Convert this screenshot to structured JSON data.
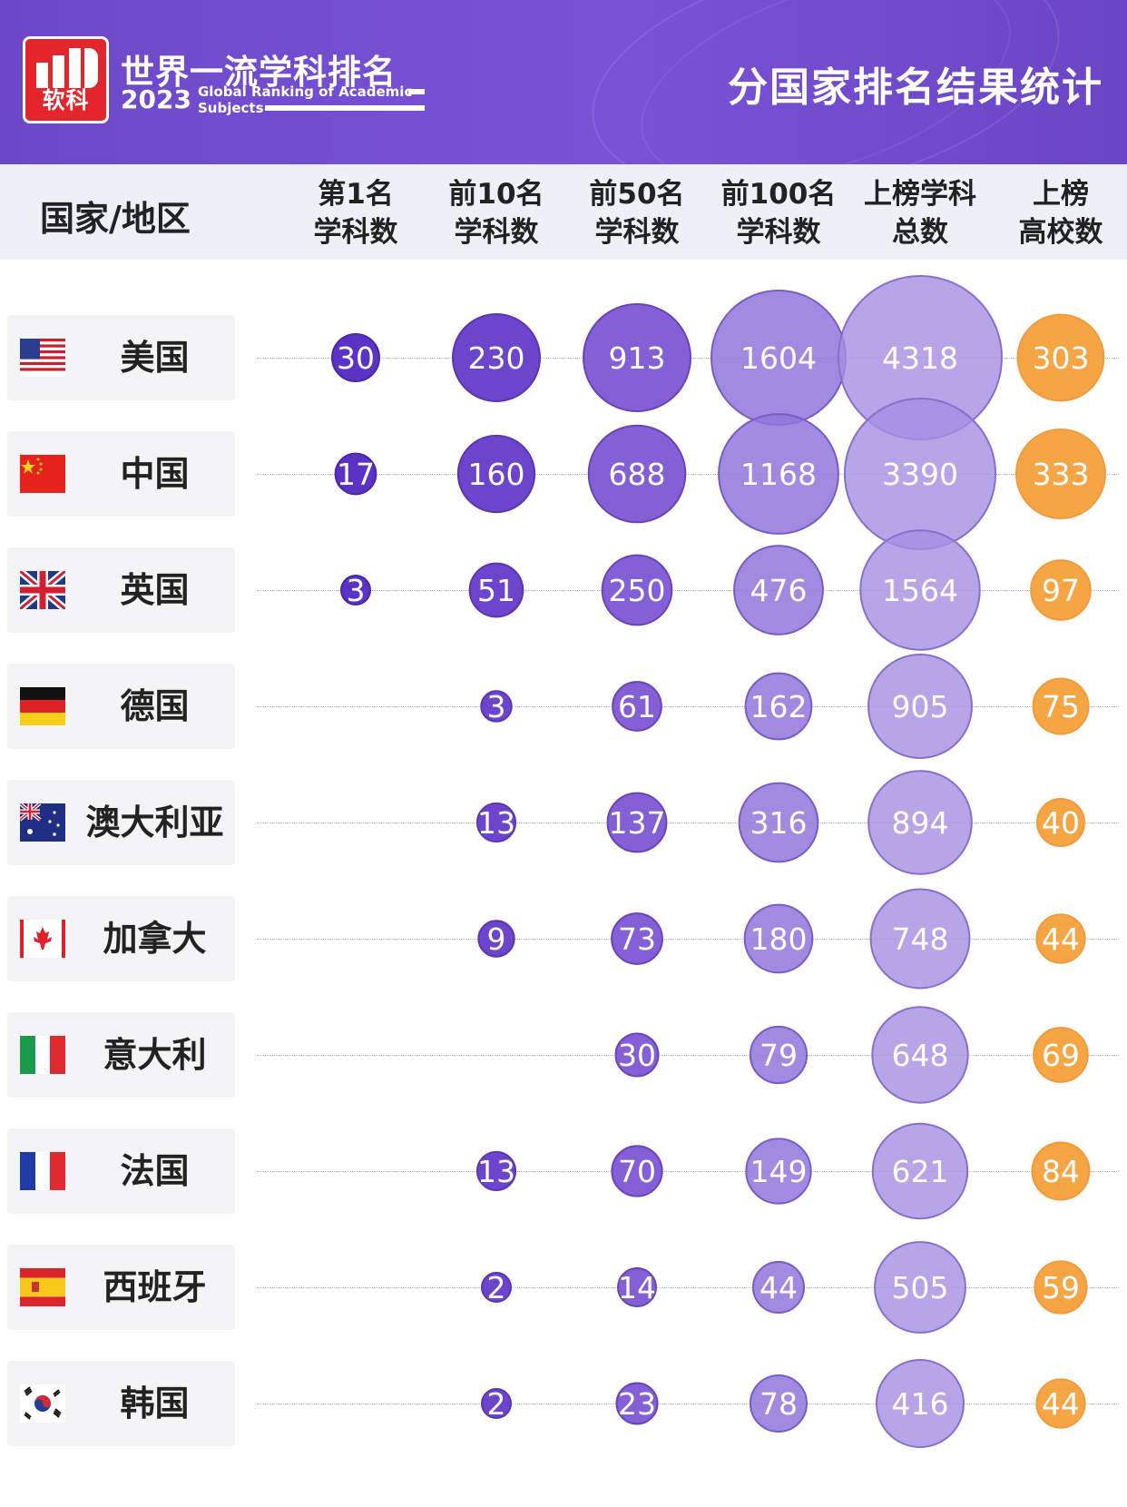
{
  "brand": {
    "logo_text": "软科",
    "title_cn": "世界一流学科排名",
    "year": "2023",
    "title_en_line1": "Global Ranking of Academic",
    "title_en_line2": "Subjects"
  },
  "header": {
    "right_title": "分国家排名结果统计"
  },
  "colors": {
    "header_bg": "#6c48c8",
    "bubble_purple_dark": "#5b33c4",
    "bubble_purple_mid": "#7e56d4",
    "bubble_purple_light": "#a992e4",
    "bubble_orange": "#f6a545"
  },
  "chart_data": {
    "type": "bubble-table",
    "title": "分国家排名结果统计",
    "row_header": "国家/地区",
    "columns": [
      {
        "key": "top1",
        "label_line1": "第1名",
        "label_line2": "学科数"
      },
      {
        "key": "top10",
        "label_line1": "前10名",
        "label_line2": "学科数"
      },
      {
        "key": "top50",
        "label_line1": "前50名",
        "label_line2": "学科数"
      },
      {
        "key": "top100",
        "label_line1": "前100名",
        "label_line2": "学科数"
      },
      {
        "key": "total",
        "label_line1": "上榜学科",
        "label_line2": "总数"
      },
      {
        "key": "universities",
        "label_line1": "上榜",
        "label_line2": "高校数"
      }
    ],
    "rows": [
      {
        "country": "美国",
        "flag": "us-flag-icon",
        "values": [
          30,
          230,
          913,
          1604,
          4318,
          303
        ]
      },
      {
        "country": "中国",
        "flag": "cn-flag-icon",
        "values": [
          17,
          160,
          688,
          1168,
          3390,
          333
        ]
      },
      {
        "country": "英国",
        "flag": "uk-flag-icon",
        "values": [
          3,
          51,
          250,
          476,
          1564,
          97
        ]
      },
      {
        "country": "德国",
        "flag": "de-flag-icon",
        "values": [
          null,
          3,
          61,
          162,
          905,
          75
        ]
      },
      {
        "country": "澳大利亚",
        "flag": "au-flag-icon",
        "values": [
          null,
          13,
          137,
          316,
          894,
          40
        ]
      },
      {
        "country": "加拿大",
        "flag": "ca-flag-icon",
        "values": [
          null,
          9,
          73,
          180,
          748,
          44
        ]
      },
      {
        "country": "意大利",
        "flag": "it-flag-icon",
        "values": [
          null,
          null,
          30,
          79,
          648,
          69
        ]
      },
      {
        "country": "法国",
        "flag": "fr-flag-icon",
        "values": [
          null,
          13,
          70,
          149,
          621,
          84
        ]
      },
      {
        "country": "西班牙",
        "flag": "es-flag-icon",
        "values": [
          null,
          2,
          14,
          44,
          505,
          59
        ]
      },
      {
        "country": "韩国",
        "flag": "kr-flag-icon",
        "values": [
          null,
          2,
          23,
          78,
          416,
          44
        ]
      }
    ]
  }
}
